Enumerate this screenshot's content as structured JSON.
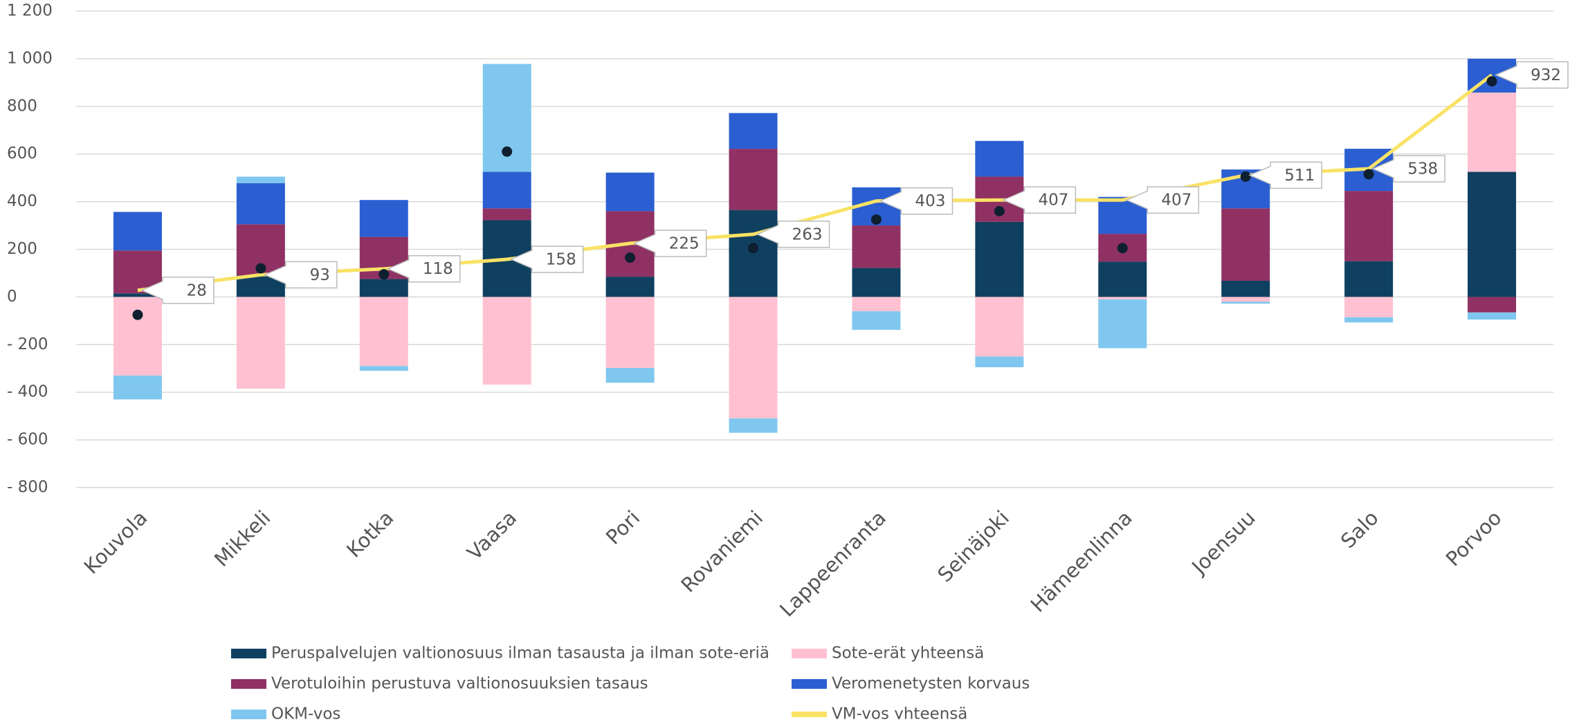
{
  "chart_data": {
    "type": "bar",
    "categories": [
      "Kouvola",
      "Mikkeli",
      "Kotka",
      "Vaasa",
      "Pori",
      "Rovaniemi",
      "Lappeenranta",
      "Seinäjoki",
      "Hämeenlinna",
      "Joensuu",
      "Salo",
      "Porvoo"
    ],
    "series": [
      {
        "name": "Peruspalvelujen valtionosuus ilman tasausta ja ilman sote-eriä",
        "color": "#0f4060",
        "values": [
          15,
          90,
          75,
          322,
          85,
          365,
          122,
          315,
          148,
          68,
          150,
          525
        ]
      },
      {
        "name": "Sote-erät yhteensä",
        "color": "#ffc1d1",
        "values": [
          -330,
          -385,
          -290,
          -368,
          -298,
          -510,
          -60,
          -250,
          -10,
          -20,
          -85,
          333
        ]
      },
      {
        "name": "Verotuloihin perustuva valtionosuuksien tasaus",
        "color": "#8f3163",
        "values": [
          180,
          215,
          177,
          50,
          275,
          257,
          178,
          190,
          117,
          304,
          295,
          -65
        ]
      },
      {
        "name": "Veromenetysten korvaus",
        "color": "#2b5fd1",
        "values": [
          162,
          173,
          155,
          153,
          162,
          150,
          160,
          150,
          155,
          163,
          177,
          142
        ]
      },
      {
        "name": "OKM-vos",
        "color": "#7fc7ef",
        "values": [
          -100,
          27,
          -20,
          453,
          -62,
          -60,
          -78,
          -45,
          -205,
          -8,
          -22,
          -30
        ]
      },
      {
        "name": "VM-vos yhteensä",
        "type": "line",
        "color": "#f9e266",
        "values": [
          28,
          93,
          118,
          158,
          225,
          263,
          403,
          407,
          407,
          511,
          538,
          932
        ]
      },
      {
        "type": "scatter",
        "color": "#0e1f30",
        "values": [
          -75,
          120,
          95,
          610,
          165,
          205,
          325,
          360,
          205,
          505,
          515,
          905
        ]
      }
    ],
    "ylim": [
      -800,
      1200
    ],
    "yticks": [
      {
        "value": -800,
        "label": "- 800"
      },
      {
        "value": -600,
        "label": "- 600"
      },
      {
        "value": -400,
        "label": "- 400"
      },
      {
        "value": -200,
        "label": "- 200"
      },
      0,
      200,
      400,
      600,
      800,
      {
        "value": 1000,
        "label": "1 000"
      },
      {
        "value": 1200,
        "label": "1 200"
      }
    ],
    "negative_tick_color": "#e8000f",
    "grid": true
  }
}
